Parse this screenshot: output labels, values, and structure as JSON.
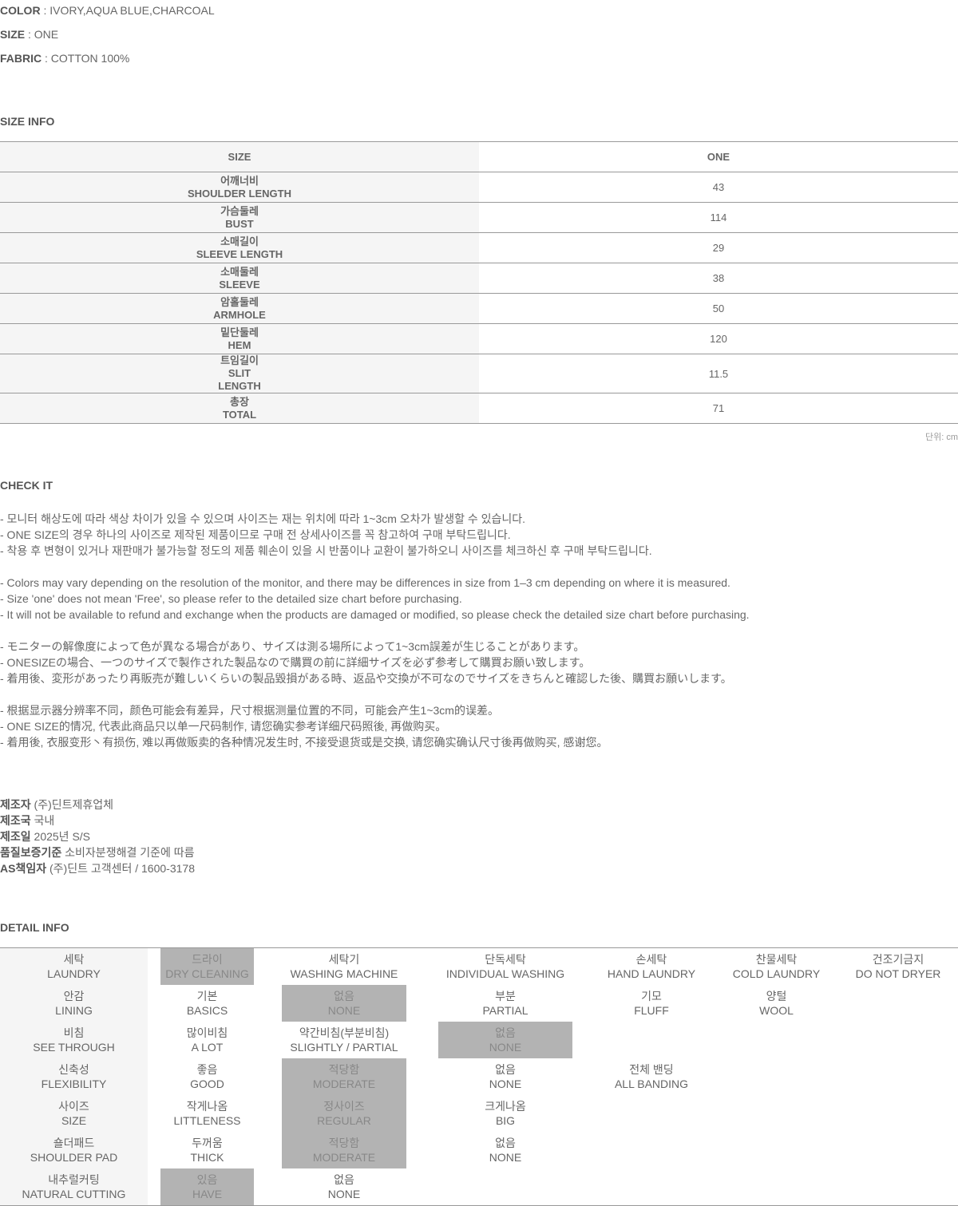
{
  "specs": [
    {
      "label": "COLOR",
      "value": " : IVORY,AQUA BLUE,CHARCOAL"
    },
    {
      "label": "SIZE",
      "value": " : ONE"
    },
    {
      "label": "FABRIC",
      "value": " : COTTON 100%"
    }
  ],
  "size_info": {
    "title": "SIZE INFO",
    "header": [
      "SIZE",
      "ONE"
    ],
    "rows": [
      {
        "ko": "어깨너비",
        "en": "SHOULDER LENGTH",
        "v": "43"
      },
      {
        "ko": "가슴둘레",
        "en": "BUST",
        "v": "114"
      },
      {
        "ko": "소매길이",
        "en": "SLEEVE LENGTH",
        "v": "29"
      },
      {
        "ko": "소매둘레",
        "en": "SLEEVE",
        "v": "38"
      },
      {
        "ko": "암홀둘레",
        "en": "ARMHOLE",
        "v": "50"
      },
      {
        "ko": "밑단둘레",
        "en": "HEM",
        "v": "120"
      },
      {
        "ko": "트임길이",
        "en": "SLIT\nLENGTH",
        "v": "11.5"
      },
      {
        "ko": "총장",
        "en": "TOTAL",
        "v": "71"
      }
    ],
    "unit": "단위: cm"
  },
  "check_it": {
    "title": "CHECK IT",
    "groups": [
      [
        "- 모니터 해상도에 따라 색상 차이가 있을 수 있으며 사이즈는 재는 위치에 따라 1~3cm 오차가 발생할 수 있습니다.",
        "- ONE SIZE의 경우 하나의 사이즈로 제작된 제품이므로 구매 전 상세사이즈를 꼭 참고하여 구매 부탁드립니다.",
        "- 착용 후 변형이 있거나 재판매가 불가능할 정도의 제품 훼손이 있을 시 반품이나 교환이 불가하오니 사이즈를 체크하신 후 구매 부탁드립니다."
      ],
      [
        "- Colors may vary depending on the resolution of the monitor, and there may be differences in size from 1–3 cm depending on where it is measured.",
        "- Size 'one' does not mean 'Free', so please refer to the detailed size chart before purchasing.",
        "- It will not be available to refund and exchange when the products are damaged or modified, so please check the detailed size chart before purchasing."
      ],
      [
        "- モニターの解像度によって色が異なる場合があり、サイズは測る場所によって1~3cm誤差が生じることがあります。",
        "- ONESIZEの場合、一つのサイズで製作された製品なので購買の前に詳細サイズを必ず参考して購買お願い致します。",
        "- 着用後、変形があったり再販売が難しいくらいの製品毀損がある時、返品や交換が不可なのでサイズをきちんと確認した後、購買お願いします。"
      ],
      [
        "- 根据显示器分辨率不同，颜色可能会有差异，尺寸根据测量位置的不同，可能会产生1~3cm的误差。",
        "- ONE SIZE的情况, 代表此商品只以单一尺码制作, 请您确实参考详细尺码照後, 再做购买。",
        "- 着用後, 衣服变形丶有损伤, 难以再做贩卖的各种情况发生时, 不接受退货或是交换, 请您确实确认尺寸後再做购买, 感谢您。"
      ]
    ]
  },
  "maker": [
    {
      "label": "제조자",
      "value": " (주)딘트제휴업체"
    },
    {
      "label": "제조국",
      "value": " 국내"
    },
    {
      "label": "제조일",
      "value": " 2025년 S/S"
    },
    {
      "label": "품질보증기준",
      "value": " 소비자분쟁해결 기준에 따름"
    },
    {
      "label": "AS책임자",
      "value": " (주)딘트 고객센터 / 1600-3178"
    }
  ],
  "detail_info": {
    "title": "DETAIL INFO",
    "highlight_color": "#b3b3b3",
    "rows": [
      {
        "cells": [
          [
            "세탁",
            "LAUNDRY"
          ],
          [
            "드라이",
            "DRY CLEANING"
          ],
          [
            "세탁기",
            "WASHING MACHINE"
          ],
          [
            "단독세탁",
            "INDIVIDUAL WASHING"
          ],
          [
            "손세탁",
            "HAND LAUNDRY"
          ],
          [
            "찬물세탁",
            "COLD LAUNDRY"
          ],
          [
            "건조기금지",
            "DO NOT DRYER"
          ]
        ],
        "selected": [
          1
        ]
      },
      {
        "cells": [
          [
            "안감",
            "LINING"
          ],
          [
            "기본",
            "BASICS"
          ],
          [
            "없음",
            "NONE"
          ],
          [
            "부분",
            "PARTIAL"
          ],
          [
            "기모",
            "FLUFF"
          ],
          [
            "양털",
            "WOOL"
          ]
        ],
        "selected": [
          2
        ]
      },
      {
        "cells": [
          [
            "비침",
            "SEE THROUGH"
          ],
          [
            "많이비침",
            "A LOT"
          ],
          [
            "약간비침(부분비침)",
            "SLIGHTLY / PARTIAL"
          ],
          [
            "없음",
            "NONE"
          ]
        ],
        "selected": [
          3
        ]
      },
      {
        "cells": [
          [
            "신축성",
            "FLEXIBILITY"
          ],
          [
            "좋음",
            "GOOD"
          ],
          [
            "적당함",
            "MODERATE"
          ],
          [
            "없음",
            "NONE"
          ],
          [
            "전체 밴딩",
            "ALL BANDING"
          ]
        ],
        "selected": [
          2
        ]
      },
      {
        "cells": [
          [
            "사이즈",
            "SIZE"
          ],
          [
            "작게나옴",
            "LITTLENESS"
          ],
          [
            "정사이즈",
            "REGULAR"
          ],
          [
            "크게나옴",
            "BIG"
          ]
        ],
        "selected": [
          2
        ]
      },
      {
        "cells": [
          [
            "숄더패드",
            "SHOULDER PAD"
          ],
          [
            "두꺼움",
            "THICK"
          ],
          [
            "적당함",
            "MODERATE"
          ],
          [
            "없음",
            "NONE"
          ]
        ],
        "selected": [
          2
        ]
      },
      {
        "cells": [
          [
            "내추럴커팅",
            "NATURAL CUTTING"
          ],
          [
            "있음",
            "HAVE"
          ],
          [
            "없음",
            "NONE"
          ]
        ],
        "selected": [
          1
        ]
      }
    ]
  }
}
